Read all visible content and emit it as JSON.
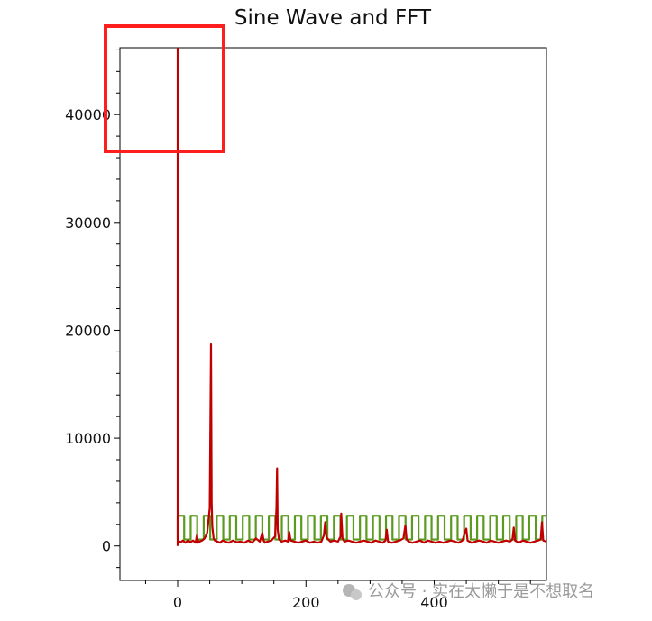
{
  "chart_data": {
    "type": "line",
    "title": "Sine Wave and FFT",
    "xlabel": "",
    "ylabel": "",
    "xlim": [
      -90,
      575
    ],
    "ylim": [
      -3200,
      46200
    ],
    "grid": false,
    "legend": "none",
    "x_ticks": [
      0,
      200,
      400
    ],
    "y_ticks": [
      0,
      10000,
      20000,
      30000,
      40000
    ],
    "series": [
      {
        "kind": "square-wave",
        "color": "#5a9a1e",
        "x_start": 0,
        "x_end": 575,
        "period": 20.3,
        "low": 600,
        "high": 2800
      },
      {
        "kind": "spectrum",
        "color": "#c00000",
        "x": [
          0,
          0,
          1,
          3,
          5,
          8,
          12,
          16,
          20,
          24,
          28,
          30,
          32,
          34,
          38,
          42,
          46,
          50,
          52,
          53,
          54,
          56,
          58,
          62,
          66,
          70,
          74,
          80,
          86,
          92,
          98,
          104,
          110,
          116,
          122,
          128,
          132,
          134,
          136,
          140,
          146,
          152,
          154,
          155,
          156,
          158,
          162,
          168,
          172,
          174,
          176,
          182,
          188,
          194,
          200,
          206,
          212,
          218,
          224,
          228,
          230,
          232,
          238,
          244,
          250,
          254,
          255,
          257,
          260,
          266,
          272,
          278,
          284,
          290,
          296,
          302,
          308,
          314,
          320,
          324,
          326,
          328,
          334,
          340,
          346,
          352,
          355,
          357,
          360,
          366,
          372,
          378,
          384,
          390,
          396,
          402,
          408,
          414,
          420,
          426,
          432,
          438,
          444,
          448,
          450,
          452,
          458,
          464,
          470,
          476,
          482,
          488,
          494,
          500,
          506,
          512,
          518,
          522,
          524,
          526,
          532,
          538,
          544,
          550,
          556,
          562,
          566,
          568,
          570,
          575
        ],
        "y": [
          0,
          46200,
          200,
          400,
          350,
          500,
          300,
          500,
          350,
          500,
          300,
          1000,
          300,
          400,
          500,
          700,
          1200,
          3500,
          18700,
          4000,
          1800,
          700,
          500,
          400,
          300,
          500,
          400,
          300,
          500,
          350,
          400,
          300,
          500,
          300,
          700,
          400,
          1200,
          500,
          300,
          400,
          500,
          900,
          3500,
          7200,
          1500,
          600,
          400,
          500,
          400,
          1300,
          500,
          400,
          300,
          400,
          500,
          300,
          400,
          300,
          400,
          1000,
          2200,
          800,
          400,
          500,
          400,
          900,
          3000,
          700,
          400,
          500,
          400,
          300,
          400,
          500,
          400,
          300,
          500,
          400,
          300,
          500,
          1500,
          400,
          300,
          400,
          500,
          700,
          1900,
          600,
          400,
          300,
          400,
          500,
          300,
          500,
          400,
          300,
          400,
          300,
          400,
          500,
          400,
          300,
          500,
          1300,
          1600,
          500,
          300,
          400,
          500,
          400,
          300,
          500,
          400,
          300,
          400,
          500,
          400,
          600,
          1700,
          500,
          300,
          500,
          400,
          300,
          400,
          500,
          600,
          2200,
          500,
          400
        ]
      }
    ],
    "annotation": {
      "kind": "highlight-rectangle",
      "color": "#ff1e1e"
    }
  },
  "watermark": {
    "text": "公众号 · 实在太懒于是不想取名",
    "icon": "wechat-icon"
  }
}
